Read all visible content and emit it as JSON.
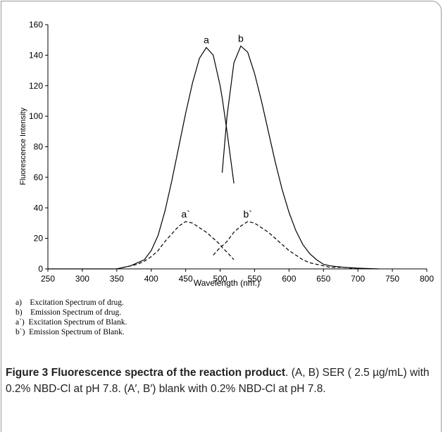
{
  "chart_data": {
    "type": "line",
    "xlabel": "Wavelength (nm.)",
    "ylabel": "Fluorescence Intensity",
    "x": [
      250,
      300,
      350,
      360,
      370,
      380,
      390,
      400,
      410,
      420,
      430,
      440,
      450,
      460,
      470,
      480,
      490,
      500,
      503,
      510,
      520,
      530,
      540,
      550,
      560,
      570,
      580,
      590,
      600,
      610,
      620,
      630,
      640,
      650,
      660,
      680,
      700,
      730
    ],
    "series": [
      {
        "name": "a",
        "color": "#000000",
        "dashed": false,
        "values": [
          0,
          0,
          0,
          1,
          2,
          4,
          6,
          12,
          22,
          38,
          58,
          80,
          102,
          122,
          138,
          145,
          140,
          120,
          112,
          90,
          56,
          null,
          null,
          null,
          null,
          null,
          null,
          null,
          null,
          null,
          null,
          null,
          null,
          null,
          null,
          null,
          null,
          null
        ]
      },
      {
        "name": "b",
        "color": "#000000",
        "dashed": false,
        "values": [
          null,
          null,
          null,
          null,
          null,
          null,
          null,
          null,
          null,
          null,
          null,
          null,
          null,
          null,
          null,
          null,
          null,
          null,
          63,
          100,
          135,
          146,
          142,
          128,
          110,
          90,
          70,
          52,
          37,
          25,
          16,
          10,
          6,
          3,
          2,
          1,
          0.5,
          0
        ]
      },
      {
        "name": "a`",
        "color": "#000000",
        "dashed": true,
        "values": [
          null,
          null,
          0,
          1,
          2,
          3,
          5,
          8,
          12,
          18,
          23,
          28,
          31,
          30,
          27,
          24,
          20,
          16,
          14,
          11,
          6,
          null,
          null,
          null,
          null,
          null,
          null,
          null,
          null,
          null,
          null,
          null,
          null,
          null,
          null,
          null,
          null,
          null
        ]
      },
      {
        "name": "b`",
        "color": "#000000",
        "dashed": true,
        "values": [
          null,
          null,
          null,
          null,
          null,
          null,
          null,
          null,
          null,
          null,
          null,
          null,
          null,
          null,
          null,
          null,
          9,
          14,
          15,
          18,
          24,
          28,
          31,
          30,
          27,
          24,
          20,
          16,
          12,
          9,
          6,
          4,
          3,
          2,
          1,
          1,
          0,
          null
        ]
      }
    ],
    "xlim": [
      250,
      800
    ],
    "xticks": [
      250,
      300,
      350,
      400,
      450,
      500,
      550,
      600,
      650,
      700,
      750,
      800
    ],
    "ylim": [
      0,
      160
    ],
    "yticks": [
      0,
      20,
      40,
      60,
      80,
      100,
      120,
      140,
      160
    ],
    "grid": false
  },
  "notes": [
    "a)    Excitation Spectrum of drug.",
    "b)    Emission Spectrum of drug.",
    "a`)  Excitation Spectrum of Blank.",
    "b`)  Emission Spectrum of Blank."
  ],
  "caption": {
    "title": "Figure 3 Fluorescence spectra of the reaction product",
    "text": ". (A, B) SER ( 2.5 µg/mL) with 0.2% NBD-Cl at pH 7.8. (A′, B′) blank with 0.2% NBD-Cl at pH 7.8."
  }
}
